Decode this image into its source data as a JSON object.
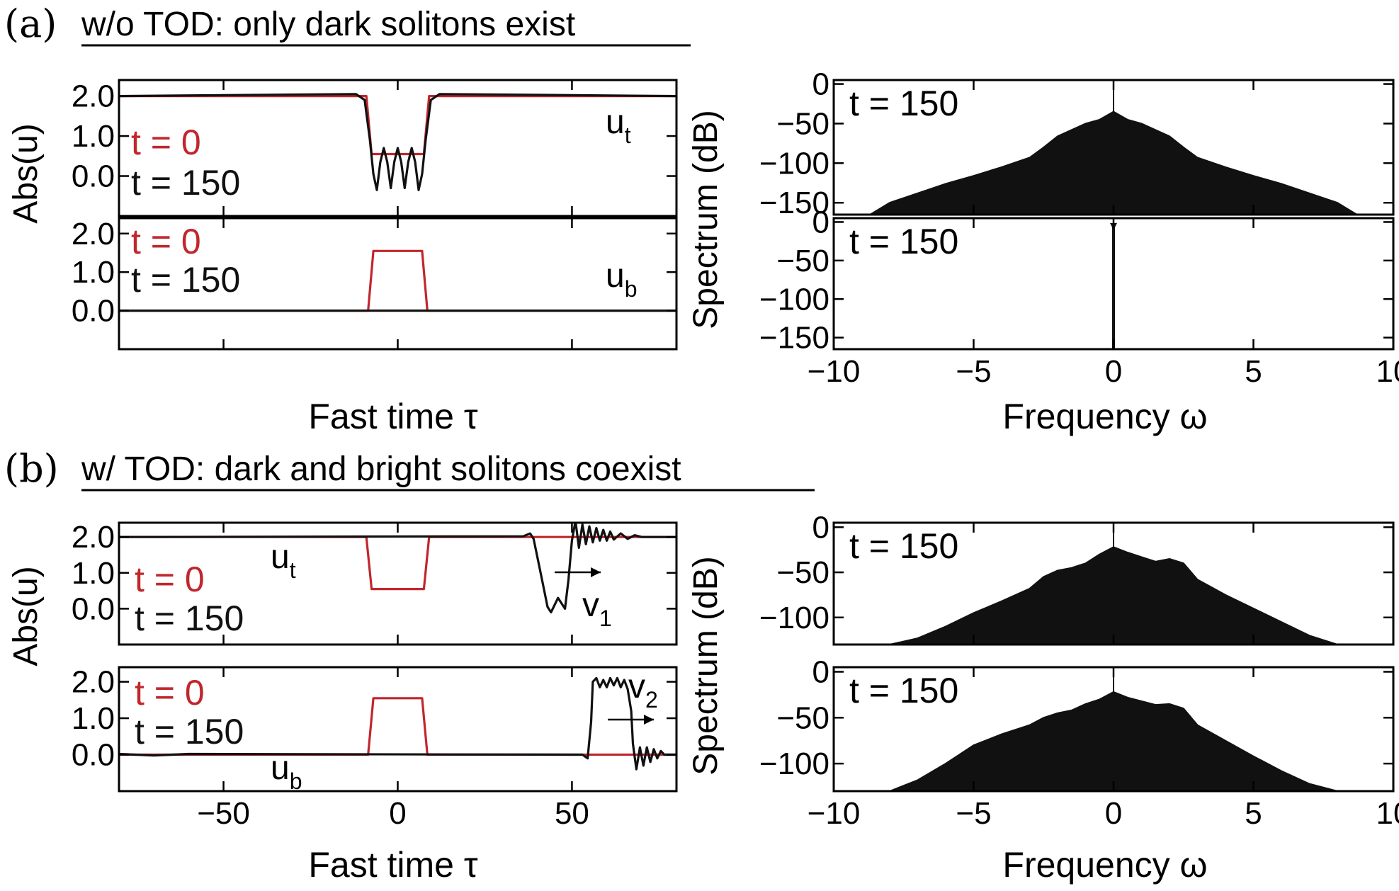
{
  "colors": {
    "t0": "#c0272d",
    "t150": "#111111"
  },
  "panels": {
    "a": {
      "letter": "(a)",
      "title": "w/o TOD: only dark solitons exist",
      "field_xlabel": "Fast time τ",
      "spec_xlabel": "Frequency ω",
      "field_ylabel": "Abs(u)",
      "spec_ylabel": "Spectrum (dB)"
    },
    "b": {
      "letter": "(b)",
      "title": "w/ TOD: dark and bright solitons coexist",
      "field_xlabel": "Fast time τ",
      "spec_xlabel": "Frequency ω",
      "field_ylabel": "Abs(u)",
      "spec_ylabel": "Spectrum (dB)"
    }
  },
  "chart_data": [
    {
      "id": "a_top_field",
      "type": "line",
      "component_label": {
        "base": "u",
        "sub": "t"
      },
      "legend": [
        "t = 0",
        "t = 150"
      ],
      "xlim": [
        -80,
        80
      ],
      "ylim": [
        -1.0,
        2.4
      ],
      "xticks": [
        -50,
        0,
        50
      ],
      "yticks": [
        0.0,
        1.0,
        2.0
      ],
      "ytick_labels": [
        "0.0",
        "1.0",
        "2.0"
      ],
      "series": [
        {
          "name": "t = 0",
          "color": "t0",
          "x": [
            -80,
            -9,
            -7.5,
            7.5,
            9,
            80
          ],
          "y": [
            2.0,
            2.0,
            0.55,
            0.55,
            2.0,
            2.0
          ]
        },
        {
          "name": "t = 150",
          "color": "t150",
          "x": [
            -80,
            -12,
            -9.5,
            -8,
            -7,
            -6,
            -5,
            -4,
            -3,
            -2,
            -1,
            0,
            1,
            2,
            3,
            4,
            5,
            6,
            7,
            8,
            9.5,
            12,
            80
          ],
          "y": [
            2.0,
            2.05,
            1.9,
            0.9,
            0.05,
            -0.35,
            0.35,
            0.7,
            0.35,
            -0.3,
            0.35,
            0.7,
            0.35,
            -0.3,
            0.35,
            0.7,
            0.35,
            -0.35,
            0.05,
            0.9,
            1.9,
            2.05,
            2.0
          ]
        }
      ]
    },
    {
      "id": "a_bottom_field",
      "type": "line",
      "component_label": {
        "base": "u",
        "sub": "b"
      },
      "legend": [
        "t = 0",
        "t = 150"
      ],
      "xlim": [
        -80,
        80
      ],
      "ylim": [
        -1.0,
        2.4
      ],
      "xticks": [
        -50,
        0,
        50
      ],
      "yticks": [
        0.0,
        1.0,
        2.0
      ],
      "ytick_labels": [
        "0.0",
        "1.0",
        "2.0"
      ],
      "series": [
        {
          "name": "t = 0",
          "color": "t0",
          "x": [
            -80,
            -8.5,
            -7,
            7,
            8.5,
            80
          ],
          "y": [
            0.0,
            0.0,
            1.55,
            1.55,
            0.0,
            0.0
          ]
        },
        {
          "name": "t = 150",
          "color": "t150",
          "x": [
            -80,
            80
          ],
          "y": [
            0.0,
            0.0
          ]
        }
      ]
    },
    {
      "id": "a_top_spectrum",
      "type": "area",
      "annotation": "t = 150",
      "xlim": [
        -10,
        10
      ],
      "ylim": [
        -165,
        5
      ],
      "xticks": [
        -10,
        -5,
        0,
        5,
        10
      ],
      "yticks": [
        0,
        -50,
        -100,
        -150
      ],
      "ytick_labels": [
        "0",
        "−50",
        "−100",
        "−150"
      ],
      "x": [
        -8.7,
        -8,
        -7,
        -6,
        -5,
        -4,
        -3,
        -2.5,
        -2,
        -1,
        -0.5,
        0,
        0.5,
        1,
        2,
        2.5,
        3,
        4,
        5,
        6,
        7,
        8,
        8.7
      ],
      "y": [
        -165,
        -150,
        -138,
        -126,
        -116,
        -105,
        -93,
        -80,
        -66,
        -50,
        -45,
        -35,
        -45,
        -50,
        -66,
        -80,
        -93,
        -105,
        -116,
        -126,
        -138,
        -150,
        -165
      ],
      "carrier_peak": {
        "x": 0,
        "y": -5
      }
    },
    {
      "id": "a_bottom_spectrum",
      "type": "line",
      "annotation": "t = 150",
      "xlim": [
        -10,
        10
      ],
      "ylim": [
        -165,
        5
      ],
      "xticks": [
        -10,
        -5,
        0,
        5,
        10
      ],
      "xtick_labels": [
        "−10",
        "−5",
        "0",
        "5",
        "10"
      ],
      "yticks": [
        0,
        -50,
        -100,
        -150
      ],
      "ytick_labels": [
        "0",
        "−50",
        "−100",
        "−150"
      ],
      "x": [
        0,
        0
      ],
      "y": [
        -165,
        -5
      ]
    },
    {
      "id": "b_top_field",
      "type": "line",
      "component_label": {
        "base": "u",
        "sub": "t"
      },
      "velocity_label": {
        "base": "v",
        "sub": "1"
      },
      "legend": [
        "t = 0",
        "t = 150"
      ],
      "xlim": [
        -80,
        80
      ],
      "ylim": [
        -1.0,
        2.4
      ],
      "xticks": [
        -50,
        0,
        50
      ],
      "yticks": [
        0.0,
        1.0,
        2.0
      ],
      "ytick_labels": [
        "0.0",
        "1.0",
        "2.0"
      ],
      "series": [
        {
          "name": "t = 0",
          "color": "t0",
          "x": [
            -80,
            -9,
            -7.5,
            7.5,
            9,
            80
          ],
          "y": [
            2.0,
            2.0,
            0.55,
            0.55,
            2.0,
            2.0
          ]
        },
        {
          "name": "t = 150",
          "color": "t150",
          "x": [
            -80,
            36,
            38,
            39,
            41,
            43,
            44,
            46,
            48,
            49,
            50,
            51,
            52,
            53,
            54,
            55,
            56,
            57,
            58,
            59,
            60,
            61,
            62,
            64,
            66,
            68,
            70,
            80
          ],
          "y": [
            2.0,
            2.02,
            2.1,
            1.95,
            1.0,
            0.05,
            -0.1,
            0.3,
            0.0,
            0.8,
            1.9,
            2.45,
            1.7,
            2.35,
            1.8,
            2.3,
            1.85,
            2.25,
            1.9,
            2.2,
            1.9,
            2.15,
            1.93,
            2.1,
            1.95,
            2.05,
            2.0,
            2.0
          ]
        }
      ]
    },
    {
      "id": "b_bottom_field",
      "type": "line",
      "component_label": {
        "base": "u",
        "sub": "b"
      },
      "velocity_label": {
        "base": "v",
        "sub": "2"
      },
      "legend": [
        "t = 0",
        "t = 150"
      ],
      "xlim": [
        -80,
        80
      ],
      "ylim": [
        -1.0,
        2.4
      ],
      "xticks": [
        -50,
        0,
        50
      ],
      "xtick_labels": [
        "−50",
        "0",
        "50"
      ],
      "yticks": [
        0.0,
        1.0,
        2.0
      ],
      "ytick_labels": [
        "0.0",
        "1.0",
        "2.0"
      ],
      "series": [
        {
          "name": "t = 0",
          "color": "t0",
          "x": [
            -80,
            -8.5,
            -7,
            7,
            8.5,
            80
          ],
          "y": [
            0.0,
            0.0,
            1.55,
            1.55,
            0.0,
            0.0
          ]
        },
        {
          "name": "t = 150",
          "color": "t150",
          "x": [
            -80,
            -70,
            -60,
            53,
            54.5,
            55.5,
            56,
            57,
            58,
            59,
            60,
            61,
            62,
            63,
            64,
            65,
            66,
            67,
            67.5,
            68.5,
            69.5,
            70.5,
            71.5,
            72.5,
            73.5,
            74.5,
            75.5,
            76.5,
            80
          ],
          "y": [
            0.02,
            -0.02,
            0.02,
            0.0,
            -0.1,
            0.9,
            2.0,
            2.1,
            1.85,
            2.05,
            1.85,
            2.1,
            1.9,
            2.1,
            1.85,
            2.05,
            1.8,
            1.2,
            0.3,
            -0.4,
            0.2,
            -0.3,
            0.2,
            -0.2,
            0.15,
            -0.1,
            0.1,
            0.0,
            0.0
          ]
        }
      ]
    },
    {
      "id": "b_top_spectrum",
      "type": "area",
      "annotation": "t = 150",
      "xlim": [
        -10,
        10
      ],
      "ylim": [
        -130,
        5
      ],
      "xticks": [
        -10,
        -5,
        0,
        5,
        10
      ],
      "yticks": [
        0,
        -50,
        -100
      ],
      "ytick_labels": [
        "0",
        "−50",
        "−100"
      ],
      "x": [
        -8,
        -7,
        -6,
        -5,
        -4,
        -3,
        -2.5,
        -2,
        -1.5,
        -1,
        -0.5,
        0,
        0.5,
        1,
        1.5,
        2,
        2.5,
        3,
        4,
        5,
        6,
        7,
        8
      ],
      "y": [
        -130,
        -123,
        -110,
        -95,
        -82,
        -68,
        -55,
        -48,
        -45,
        -40,
        -30,
        -22,
        -28,
        -33,
        -38,
        -35,
        -40,
        -58,
        -75,
        -90,
        -105,
        -120,
        -130
      ],
      "carrier_peak": {
        "x": 0,
        "y": -5
      }
    },
    {
      "id": "b_bottom_spectrum",
      "type": "area",
      "annotation": "t = 150",
      "xlim": [
        -10,
        10
      ],
      "ylim": [
        -130,
        5
      ],
      "xticks": [
        -10,
        -5,
        0,
        5,
        10
      ],
      "xtick_labels": [
        "−10",
        "−5",
        "0",
        "5",
        "10"
      ],
      "yticks": [
        0,
        -50,
        -100
      ],
      "ytick_labels": [
        "0",
        "−50",
        "−100"
      ],
      "x": [
        -8,
        -7,
        -6,
        -5,
        -4,
        -3,
        -2.5,
        -2,
        -1.5,
        -1,
        -0.5,
        0,
        0.5,
        1,
        1.5,
        2,
        2.5,
        3,
        4,
        5,
        6,
        7,
        8
      ],
      "y": [
        -130,
        -118,
        -100,
        -80,
        -68,
        -58,
        -50,
        -45,
        -42,
        -35,
        -30,
        -22,
        -28,
        -32,
        -36,
        -35,
        -40,
        -58,
        -75,
        -92,
        -108,
        -122,
        -130
      ],
      "carrier_peak": {
        "x": 0,
        "y": -5
      }
    }
  ]
}
